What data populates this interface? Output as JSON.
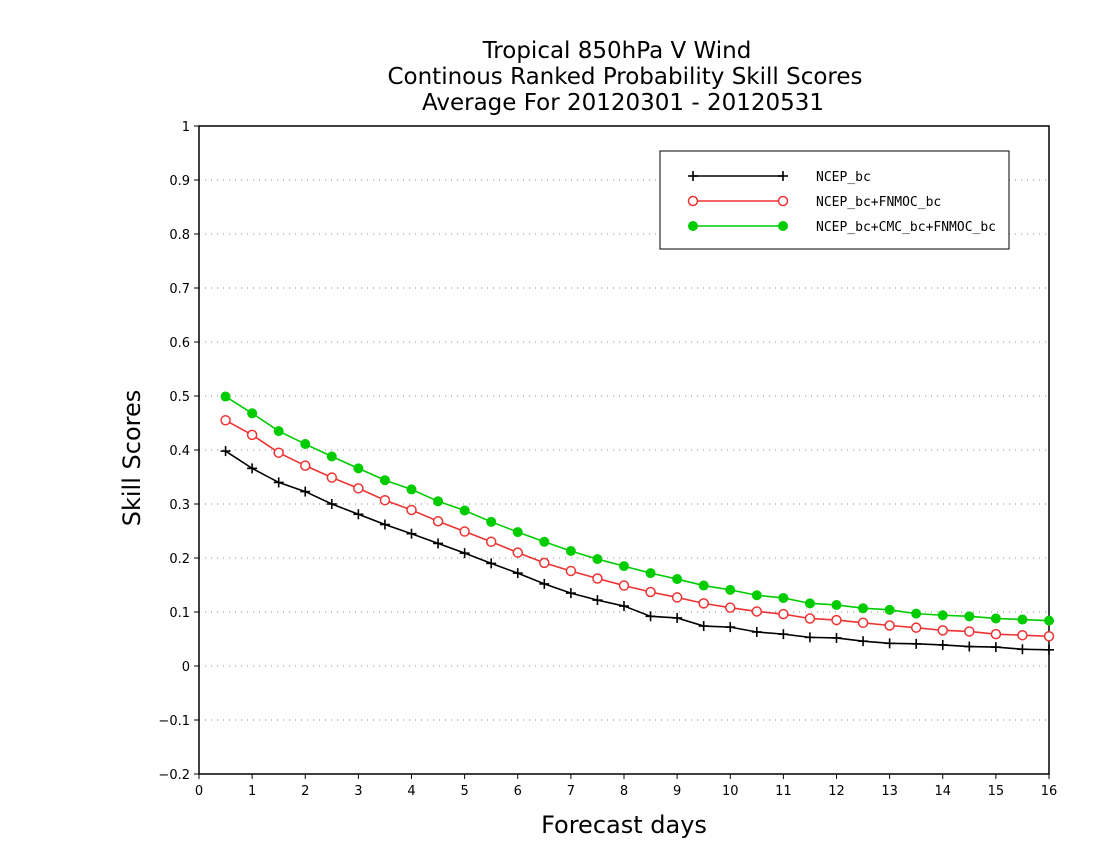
{
  "chart_data": {
    "type": "line",
    "title": [
      "Tropical 850hPa V Wind",
      "Continous Ranked Probability Skill Scores",
      "Average For 20120301 - 20120531"
    ],
    "xlabel": "Forecast days",
    "ylabel": "Skill Scores",
    "xlim": [
      0,
      16
    ],
    "ylim": [
      -0.2,
      1
    ],
    "xticks": [
      "0",
      "1",
      "2",
      "3",
      "4",
      "5",
      "6",
      "7",
      "8",
      "9",
      "10",
      "11",
      "12",
      "13",
      "14",
      "15",
      "16"
    ],
    "yticks": [
      "−0.2",
      "−0.1",
      "0",
      "0.1",
      "0.2",
      "0.3",
      "0.4",
      "0.5",
      "0.6",
      "0.7",
      "0.8",
      "0.9",
      "1"
    ],
    "grid": "horizontal dotted",
    "legend_position": "top-right",
    "x": [
      0.5,
      1,
      1.5,
      2,
      2.5,
      3,
      3.5,
      4,
      4.5,
      5,
      5.5,
      6,
      6.5,
      7,
      7.5,
      8,
      8.5,
      9,
      9.5,
      10,
      10.5,
      11,
      11.5,
      12,
      12.5,
      13,
      13.5,
      14,
      14.5,
      15,
      15.5,
      16
    ],
    "series": [
      {
        "name": "NCEP_bc",
        "color": "#000000",
        "marker": "plus",
        "values": [
          0.398,
          0.366,
          0.34,
          0.323,
          0.3,
          0.281,
          0.262,
          0.245,
          0.227,
          0.209,
          0.19,
          0.172,
          0.152,
          0.135,
          0.122,
          0.111,
          0.092,
          0.089,
          0.074,
          0.072,
          0.063,
          0.059,
          0.053,
          0.052,
          0.046,
          0.042,
          0.041,
          0.039,
          0.036,
          0.035,
          0.031,
          0.03
        ]
      },
      {
        "name": "NCEP_bc+FNMOC_bc",
        "color": "#ee3333",
        "marker": "open-circle",
        "values": [
          0.455,
          0.428,
          0.395,
          0.371,
          0.349,
          0.329,
          0.307,
          0.289,
          0.268,
          0.249,
          0.23,
          0.21,
          0.191,
          0.176,
          0.162,
          0.149,
          0.137,
          0.127,
          0.116,
          0.108,
          0.101,
          0.096,
          0.088,
          0.085,
          0.08,
          0.075,
          0.071,
          0.066,
          0.064,
          0.059,
          0.057,
          0.055
        ]
      },
      {
        "name": "NCEP_bc+CMC_bc+FNMOC_bc",
        "color": "#00cc00",
        "marker": "filled-circle",
        "values": [
          0.499,
          0.468,
          0.435,
          0.411,
          0.388,
          0.366,
          0.344,
          0.327,
          0.305,
          0.288,
          0.267,
          0.248,
          0.23,
          0.213,
          0.198,
          0.185,
          0.172,
          0.161,
          0.149,
          0.141,
          0.131,
          0.126,
          0.116,
          0.113,
          0.107,
          0.104,
          0.097,
          0.094,
          0.092,
          0.088,
          0.086,
          0.084
        ]
      }
    ]
  }
}
